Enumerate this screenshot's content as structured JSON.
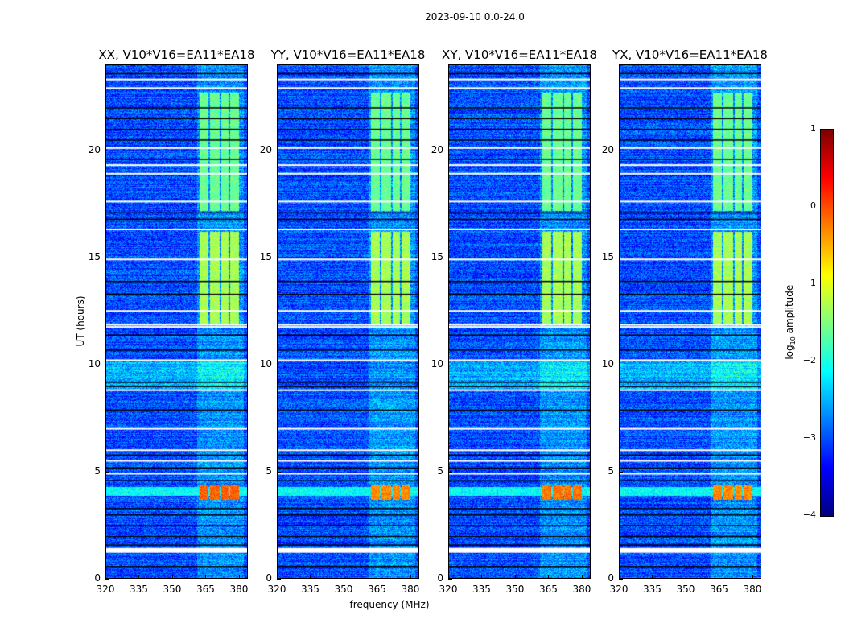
{
  "chart_data": {
    "type": "heatmap",
    "title": "2023-09-10 0.0-24.0",
    "xlabel": "frequency (MHz)",
    "ylabel": "UT (hours)",
    "xlim": [
      320,
      384
    ],
    "ylim": [
      0,
      24
    ],
    "xticks": [
      "320",
      "335",
      "350",
      "365",
      "380"
    ],
    "yticks": [
      "0",
      "5",
      "10",
      "15",
      "20"
    ],
    "panels": [
      {
        "title": "XX, V10*V16=EA11*EA18",
        "rfi_level": -0.1,
        "low_freq_excess": true
      },
      {
        "title": "YY, V10*V16=EA11*EA18",
        "rfi_level": -0.3,
        "low_freq_excess": false
      },
      {
        "title": "XY, V10*V16=EA11*EA18",
        "rfi_level": -0.2,
        "low_freq_excess": true
      },
      {
        "title": "YX, V10*V16=EA11*EA18",
        "rfi_level": -0.3,
        "low_freq_excess": true
      }
    ],
    "background_log_amplitude": -3.0,
    "rfi_subbands_mhz": [
      [
        362,
        366
      ],
      [
        367,
        371
      ],
      [
        372,
        375
      ],
      [
        376,
        380
      ]
    ],
    "rfi_time_blocks": [
      {
        "start": 11.9,
        "end": 16.2,
        "level": -1.3
      },
      {
        "start": 17.2,
        "end": 22.7,
        "level": -1.6
      },
      {
        "start": 3.7,
        "end": 4.4,
        "level": 0.0
      }
    ],
    "flagged_rows_hours": [
      1.4,
      4.9,
      5.5,
      6.0,
      7.0,
      8.8,
      10.2,
      11.75,
      11.85,
      12.5,
      14.9,
      16.3,
      17.6,
      18.9,
      19.3,
      20.1,
      22.9,
      23.3
    ],
    "dropout_rows_hours": [
      0.6,
      1.6,
      2.0,
      2.5,
      3.0,
      3.3,
      4.6,
      5.2,
      5.8,
      7.9,
      9.0,
      9.2,
      10.7,
      11.4,
      13.3,
      13.9,
      16.8,
      17.1,
      19.6,
      20.5,
      21.0,
      21.5,
      22.0,
      23.6
    ],
    "colorbar": {
      "label": "log10 amplitude",
      "label_main": "log",
      "label_sub": "10",
      "label_rest": " amplitude",
      "range": [
        -4,
        1
      ],
      "ticks": [
        "1",
        "0",
        "−1",
        "−2",
        "−3",
        "−4"
      ],
      "colormap": "jet"
    }
  }
}
